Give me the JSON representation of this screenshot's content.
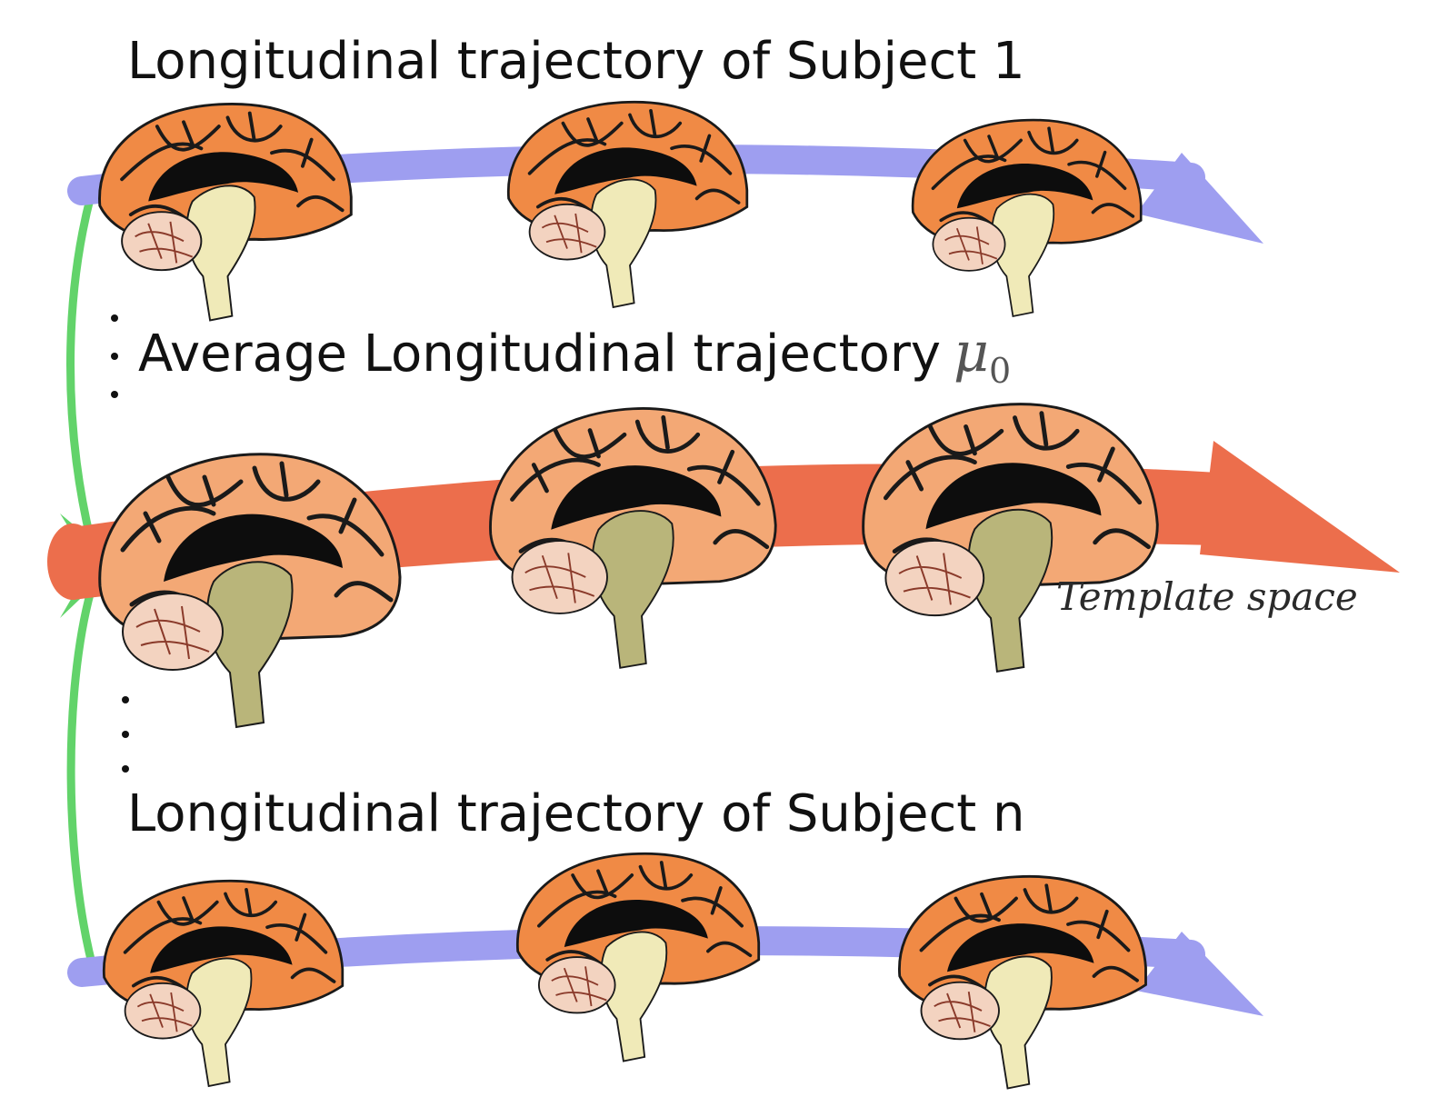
{
  "labels": {
    "subject1": "Longitudinal trajectory of Subject 1",
    "average": "Average Longitudinal trajectory",
    "average_symbol": "μ",
    "average_symbol_subscript": "0",
    "subjectn": "Longitudinal trajectory of Subject n",
    "template_space": "Template space"
  },
  "colors": {
    "subject_arrow": "#9e9ef0",
    "average_arrow": "#ec6e4c",
    "connector": "#62d36a",
    "cortex_subject": "#f08a45",
    "cortex_average": "#f3a875",
    "sulci": "#111111",
    "corpus_callosum": "#0d0d0d",
    "brainstem_subject": "#f0eab8",
    "brainstem_average": "#b9b57a",
    "cerebellum": "#f3d3c0"
  },
  "rows": [
    {
      "id": "subject-1",
      "brains": [
        "time-point-1",
        "time-point-2",
        "time-point-3"
      ]
    },
    {
      "id": "average",
      "brains": [
        "time-point-1",
        "time-point-2",
        "time-point-3"
      ]
    },
    {
      "id": "subject-n",
      "brains": [
        "time-point-1",
        "time-point-2",
        "time-point-3"
      ]
    }
  ]
}
